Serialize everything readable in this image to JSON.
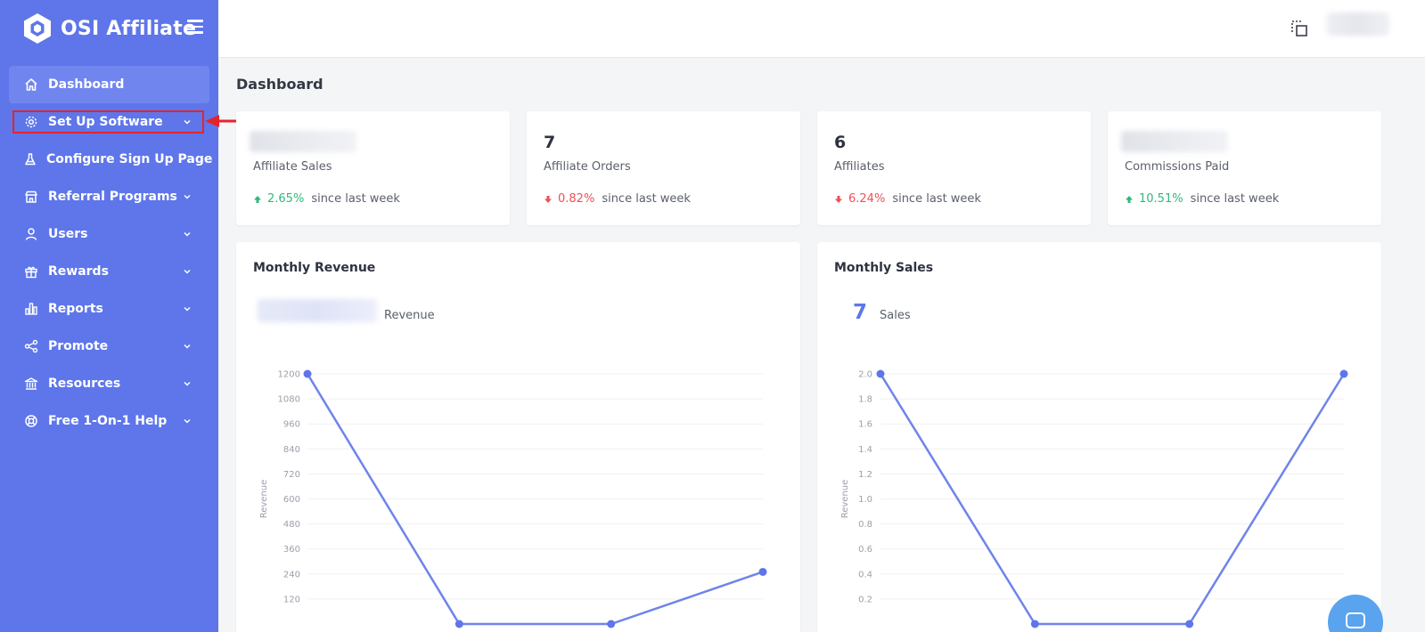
{
  "brand": {
    "name": "OSI Affiliate"
  },
  "sidebar": {
    "items": [
      {
        "label": "Dashboard",
        "icon": "home-icon",
        "active": true,
        "has_submenu": false
      },
      {
        "label": "Set Up Software",
        "icon": "gear-icon",
        "active": false,
        "has_submenu": true
      },
      {
        "label": "Configure Sign Up Page",
        "icon": "flask-icon",
        "active": false,
        "has_submenu": false
      },
      {
        "label": "Referral Programs",
        "icon": "store-icon",
        "active": false,
        "has_submenu": true
      },
      {
        "label": "Users",
        "icon": "user-icon",
        "active": false,
        "has_submenu": true
      },
      {
        "label": "Rewards",
        "icon": "gift-icon",
        "active": false,
        "has_submenu": true
      },
      {
        "label": "Reports",
        "icon": "bar-chart-icon",
        "active": false,
        "has_submenu": true
      },
      {
        "label": "Promote",
        "icon": "share-icon",
        "active": false,
        "has_submenu": true
      },
      {
        "label": "Resources",
        "icon": "bank-icon",
        "active": false,
        "has_submenu": true
      },
      {
        "label": "Free 1-On-1 Help",
        "icon": "lifebuoy-icon",
        "active": false,
        "has_submenu": true
      }
    ]
  },
  "page": {
    "title": "Dashboard"
  },
  "stats": [
    {
      "value": "",
      "label": "Affiliate Sales",
      "change": "2.65%",
      "trend": "up",
      "since": "since last week"
    },
    {
      "value": "7",
      "label": "Affiliate Orders",
      "change": "0.82%",
      "trend": "down",
      "since": "since last week"
    },
    {
      "value": "6",
      "label": "Affiliates",
      "change": "6.24%",
      "trend": "down",
      "since": "since last week"
    },
    {
      "value": "",
      "label": "Commissions Paid",
      "change": "10.51%",
      "trend": "up",
      "since": "since last week"
    }
  ],
  "revenue_card": {
    "title": "Monthly Revenue",
    "summary_label": "Revenue"
  },
  "sales_card": {
    "title": "Monthly Sales",
    "summary_value": "7",
    "summary_label": "Sales"
  },
  "colors": {
    "sidebar": "#5e76ea",
    "accent": "#5e76ea",
    "up": "#2fb87c",
    "down": "#ef4f55",
    "highlight": "#e5242a"
  },
  "chart_data": [
    {
      "type": "line",
      "title": "Monthly Revenue",
      "ylabel": "Revenue",
      "ylim": [
        0,
        1200
      ],
      "yticks": [
        120,
        240,
        360,
        480,
        600,
        720,
        840,
        960,
        1080,
        1200
      ],
      "series": [
        {
          "name": "Revenue",
          "values": [
            1200,
            0,
            0,
            250
          ]
        }
      ]
    },
    {
      "type": "line",
      "title": "Monthly Sales",
      "ylabel": "Revenue",
      "ylim": [
        0,
        2.0
      ],
      "yticks": [
        "0.2",
        "0.4",
        "0.6",
        "0.8",
        "1.0",
        "1.2",
        "1.4",
        "1.6",
        "1.8",
        "2.0"
      ],
      "series": [
        {
          "name": "Sales",
          "values": [
            2,
            0,
            0,
            2
          ]
        }
      ]
    }
  ]
}
